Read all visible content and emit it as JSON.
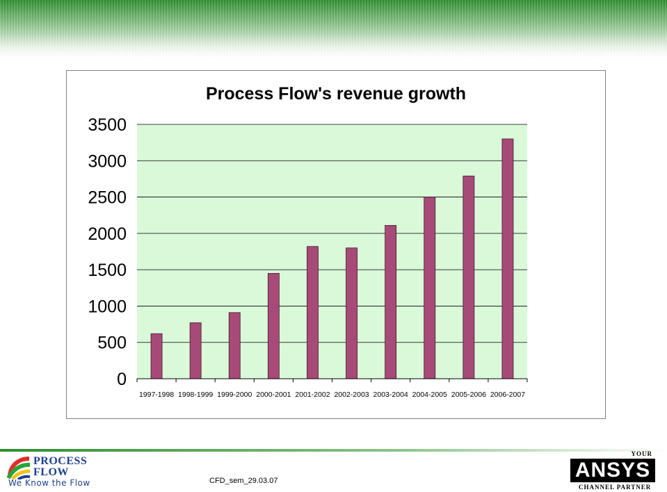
{
  "chart_data": {
    "type": "bar",
    "title": "Process Flow's revenue growth",
    "xlabel": "",
    "ylabel": "",
    "categories": [
      "1997-1998",
      "1998-1999",
      "1999-2000",
      "2000-2001",
      "2001-2002",
      "2002-2003",
      "2003-2004",
      "2004-2005",
      "2005-2006",
      "2006-2007"
    ],
    "values": [
      620,
      770,
      910,
      1450,
      1820,
      1800,
      2110,
      2500,
      2790,
      3300
    ],
    "ylim": [
      0,
      3500
    ],
    "yticks": [
      "0",
      "500",
      "1000",
      "1500",
      "2000",
      "2500",
      "3000",
      "3500"
    ],
    "grid": true,
    "legend": "none",
    "colors": {
      "bar": "#a84a78",
      "plot_bg": "#d9f9d9",
      "grid": "#000000"
    }
  },
  "footer": {
    "code": "CFD_sem_29.03.07",
    "left_logo": {
      "line1": "PROCESS",
      "line2": "FLOW",
      "tagline": "We Know the Flow"
    },
    "right_logo": {
      "top": "YOUR",
      "brand": "ANSYS",
      "bottom": "CHANNEL PARTNER"
    }
  }
}
